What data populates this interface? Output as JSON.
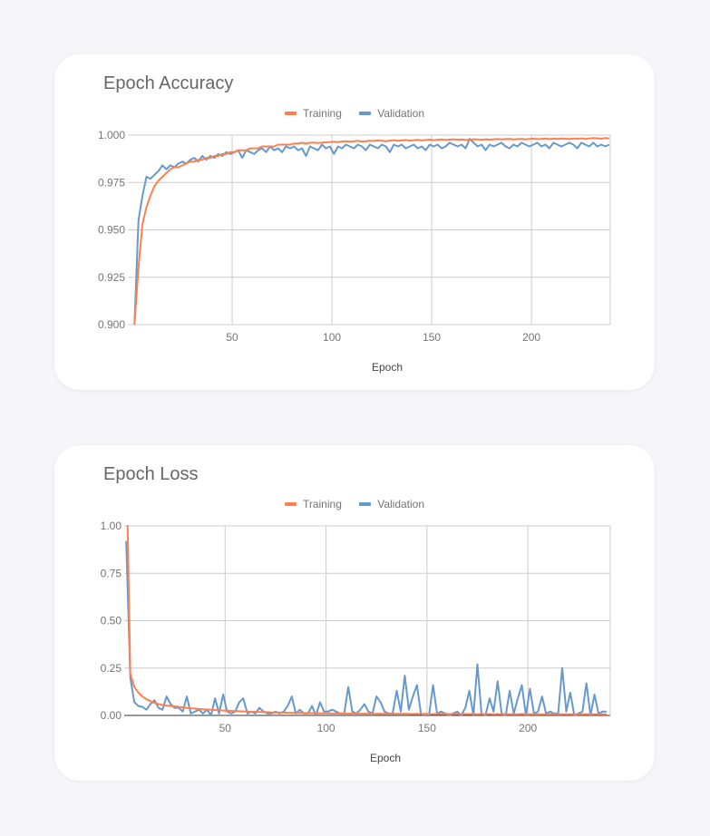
{
  "colors": {
    "training": "#ff7f4f",
    "validation": "#6699cc",
    "grid": "#cccccc"
  },
  "chart_data": [
    {
      "type": "line",
      "title": "Epoch Accuracy",
      "xlabel": "Epoch",
      "ylabel": "",
      "ylim": [
        0.9,
        1.0
      ],
      "yticks": [
        "0.900",
        "0.925",
        "0.950",
        "0.975",
        "1.000"
      ],
      "xlim": [
        -2.3,
        239.5
      ],
      "xticks": [
        50,
        100,
        150,
        200
      ],
      "grid": true,
      "legend": "top-center",
      "x_start": 1,
      "x_step": 2,
      "series": [
        {
          "name": "Training",
          "values": [
            0.9,
            0.93,
            0.953,
            0.962,
            0.968,
            0.973,
            0.976,
            0.978,
            0.98,
            0.982,
            0.983,
            0.983,
            0.984,
            0.985,
            0.986,
            0.986,
            0.987,
            0.987,
            0.988,
            0.988,
            0.989,
            0.989,
            0.99,
            0.99,
            0.991,
            0.991,
            0.992,
            0.992,
            0.992,
            0.993,
            0.993,
            0.993,
            0.994,
            0.994,
            0.994,
            0.994,
            0.995,
            0.995,
            0.995,
            0.995,
            0.9955,
            0.9955,
            0.996,
            0.9955,
            0.996,
            0.996,
            0.9958,
            0.996,
            0.9962,
            0.9963,
            0.9965,
            0.9963,
            0.9966,
            0.9968,
            0.9965,
            0.9967,
            0.997,
            0.9966,
            0.9968,
            0.997,
            0.9969,
            0.9972,
            0.997,
            0.9968,
            0.9971,
            0.9973,
            0.997,
            0.9972,
            0.9974,
            0.9971,
            0.9973,
            0.9975,
            0.9972,
            0.9974,
            0.9976,
            0.9973,
            0.9975,
            0.9977,
            0.9974,
            0.9976,
            0.9978,
            0.9975,
            0.9977,
            0.9974,
            0.9976,
            0.9978,
            0.9977,
            0.9975,
            0.9978,
            0.9976,
            0.9978,
            0.9979,
            0.9977,
            0.9979,
            0.998,
            0.9977,
            0.9979,
            0.998,
            0.9978,
            0.998,
            0.9981,
            0.9979,
            0.998,
            0.9982,
            0.9979,
            0.9981,
            0.998,
            0.9982,
            0.9981,
            0.9979,
            0.9982,
            0.9981,
            0.9983,
            0.998,
            0.9982,
            0.9984,
            0.9983,
            0.9981,
            0.9984,
            0.9983
          ]
        },
        {
          "name": "Validation",
          "values": [
            0.9,
            0.955,
            0.968,
            0.978,
            0.977,
            0.979,
            0.981,
            0.984,
            0.982,
            0.984,
            0.983,
            0.985,
            0.986,
            0.985,
            0.987,
            0.988,
            0.986,
            0.989,
            0.987,
            0.989,
            0.988,
            0.99,
            0.989,
            0.991,
            0.99,
            0.991,
            0.992,
            0.988,
            0.992,
            0.991,
            0.99,
            0.992,
            0.993,
            0.991,
            0.994,
            0.992,
            0.993,
            0.991,
            0.994,
            0.993,
            0.994,
            0.992,
            0.993,
            0.989,
            0.994,
            0.993,
            0.992,
            0.995,
            0.993,
            0.994,
            0.99,
            0.994,
            0.993,
            0.995,
            0.994,
            0.993,
            0.995,
            0.994,
            0.992,
            0.995,
            0.994,
            0.993,
            0.995,
            0.994,
            0.991,
            0.995,
            0.994,
            0.995,
            0.993,
            0.994,
            0.995,
            0.993,
            0.994,
            0.992,
            0.995,
            0.994,
            0.995,
            0.993,
            0.994,
            0.996,
            0.995,
            0.994,
            0.995,
            0.993,
            0.998,
            0.996,
            0.994,
            0.995,
            0.992,
            0.995,
            0.994,
            0.995,
            0.996,
            0.994,
            0.993,
            0.995,
            0.994,
            0.996,
            0.995,
            0.994,
            0.995,
            0.996,
            0.994,
            0.995,
            0.993,
            0.996,
            0.995,
            0.994,
            0.995,
            0.996,
            0.995,
            0.993,
            0.996,
            0.995,
            0.994,
            0.996,
            0.994,
            0.995,
            0.994,
            0.995
          ]
        }
      ]
    },
    {
      "type": "line",
      "title": "Epoch Loss",
      "xlabel": "Epoch",
      "ylabel": "",
      "ylim": [
        0,
        1.0
      ],
      "yticks": [
        "0.00",
        "0.25",
        "0.50",
        "0.75",
        "1.00"
      ],
      "xlim": [
        0,
        240.8
      ],
      "xticks": [
        50,
        100,
        150,
        200
      ],
      "grid": true,
      "legend": "top-center",
      "x_start": 1,
      "x_step": 2,
      "series": [
        {
          "name": "Training",
          "values": [
            1.4,
            0.22,
            0.15,
            0.12,
            0.1,
            0.085,
            0.075,
            0.065,
            0.06,
            0.055,
            0.052,
            0.05,
            0.048,
            0.045,
            0.043,
            0.04,
            0.038,
            0.036,
            0.034,
            0.032,
            0.031,
            0.03,
            0.028,
            0.027,
            0.026,
            0.025,
            0.024,
            0.023,
            0.022,
            0.021,
            0.02,
            0.019,
            0.019,
            0.018,
            0.017,
            0.017,
            0.016,
            0.016,
            0.015,
            0.015,
            0.014,
            0.014,
            0.013,
            0.013,
            0.012,
            0.012,
            0.012,
            0.011,
            0.011,
            0.011,
            0.01,
            0.01,
            0.01,
            0.01,
            0.01,
            0.009,
            0.01,
            0.009,
            0.009,
            0.009,
            0.009,
            0.009,
            0.008,
            0.009,
            0.008,
            0.008,
            0.008,
            0.008,
            0.008,
            0.008,
            0.008,
            0.007,
            0.008,
            0.007,
            0.008,
            0.007,
            0.007,
            0.007,
            0.007,
            0.008,
            0.007,
            0.007,
            0.007,
            0.007,
            0.007,
            0.007,
            0.007,
            0.006,
            0.007,
            0.007,
            0.007,
            0.006,
            0.007,
            0.006,
            0.007,
            0.006,
            0.006,
            0.006,
            0.007,
            0.006,
            0.006,
            0.006,
            0.006,
            0.006,
            0.006,
            0.006,
            0.006,
            0.006,
            0.006,
            0.006,
            0.006,
            0.006,
            0.006,
            0.006,
            0.006,
            0.006,
            0.006,
            0.006,
            0.006,
            0.006
          ]
        },
        {
          "name": "Validation",
          "values": [
            0.92,
            0.2,
            0.07,
            0.05,
            0.045,
            0.03,
            0.06,
            0.08,
            0.04,
            0.03,
            0.1,
            0.06,
            0.04,
            0.04,
            0.02,
            0.1,
            0.01,
            0.02,
            0.03,
            0.01,
            0.03,
            0.0,
            0.09,
            0.01,
            0.11,
            0.02,
            0.01,
            0.02,
            0.07,
            0.09,
            0.01,
            0.02,
            0.01,
            0.04,
            0.02,
            0.01,
            0.01,
            0.02,
            0.01,
            0.02,
            0.05,
            0.1,
            0.01,
            0.03,
            0.01,
            0.01,
            0.05,
            0.0,
            0.07,
            0.02,
            0.02,
            0.03,
            0.02,
            0.01,
            0.01,
            0.15,
            0.02,
            0.01,
            0.03,
            0.06,
            0.02,
            0.01,
            0.1,
            0.07,
            0.02,
            0.01,
            0.01,
            0.13,
            0.02,
            0.21,
            0.03,
            0.1,
            0.16,
            0.01,
            0.0,
            0.0,
            0.16,
            0.01,
            0.02,
            0.01,
            0.0,
            0.01,
            0.02,
            0.0,
            0.04,
            0.13,
            0.0,
            0.27,
            0.01,
            0.0,
            0.09,
            0.02,
            0.18,
            0.01,
            0.0,
            0.13,
            0.01,
            0.09,
            0.16,
            0.0,
            0.14,
            0.01,
            0.02,
            0.1,
            0.01,
            0.02,
            0.01,
            0.01,
            0.25,
            0.02,
            0.12,
            0.0,
            0.01,
            0.02,
            0.17,
            0.0,
            0.11,
            0.01,
            0.02,
            0.02
          ]
        }
      ]
    }
  ]
}
